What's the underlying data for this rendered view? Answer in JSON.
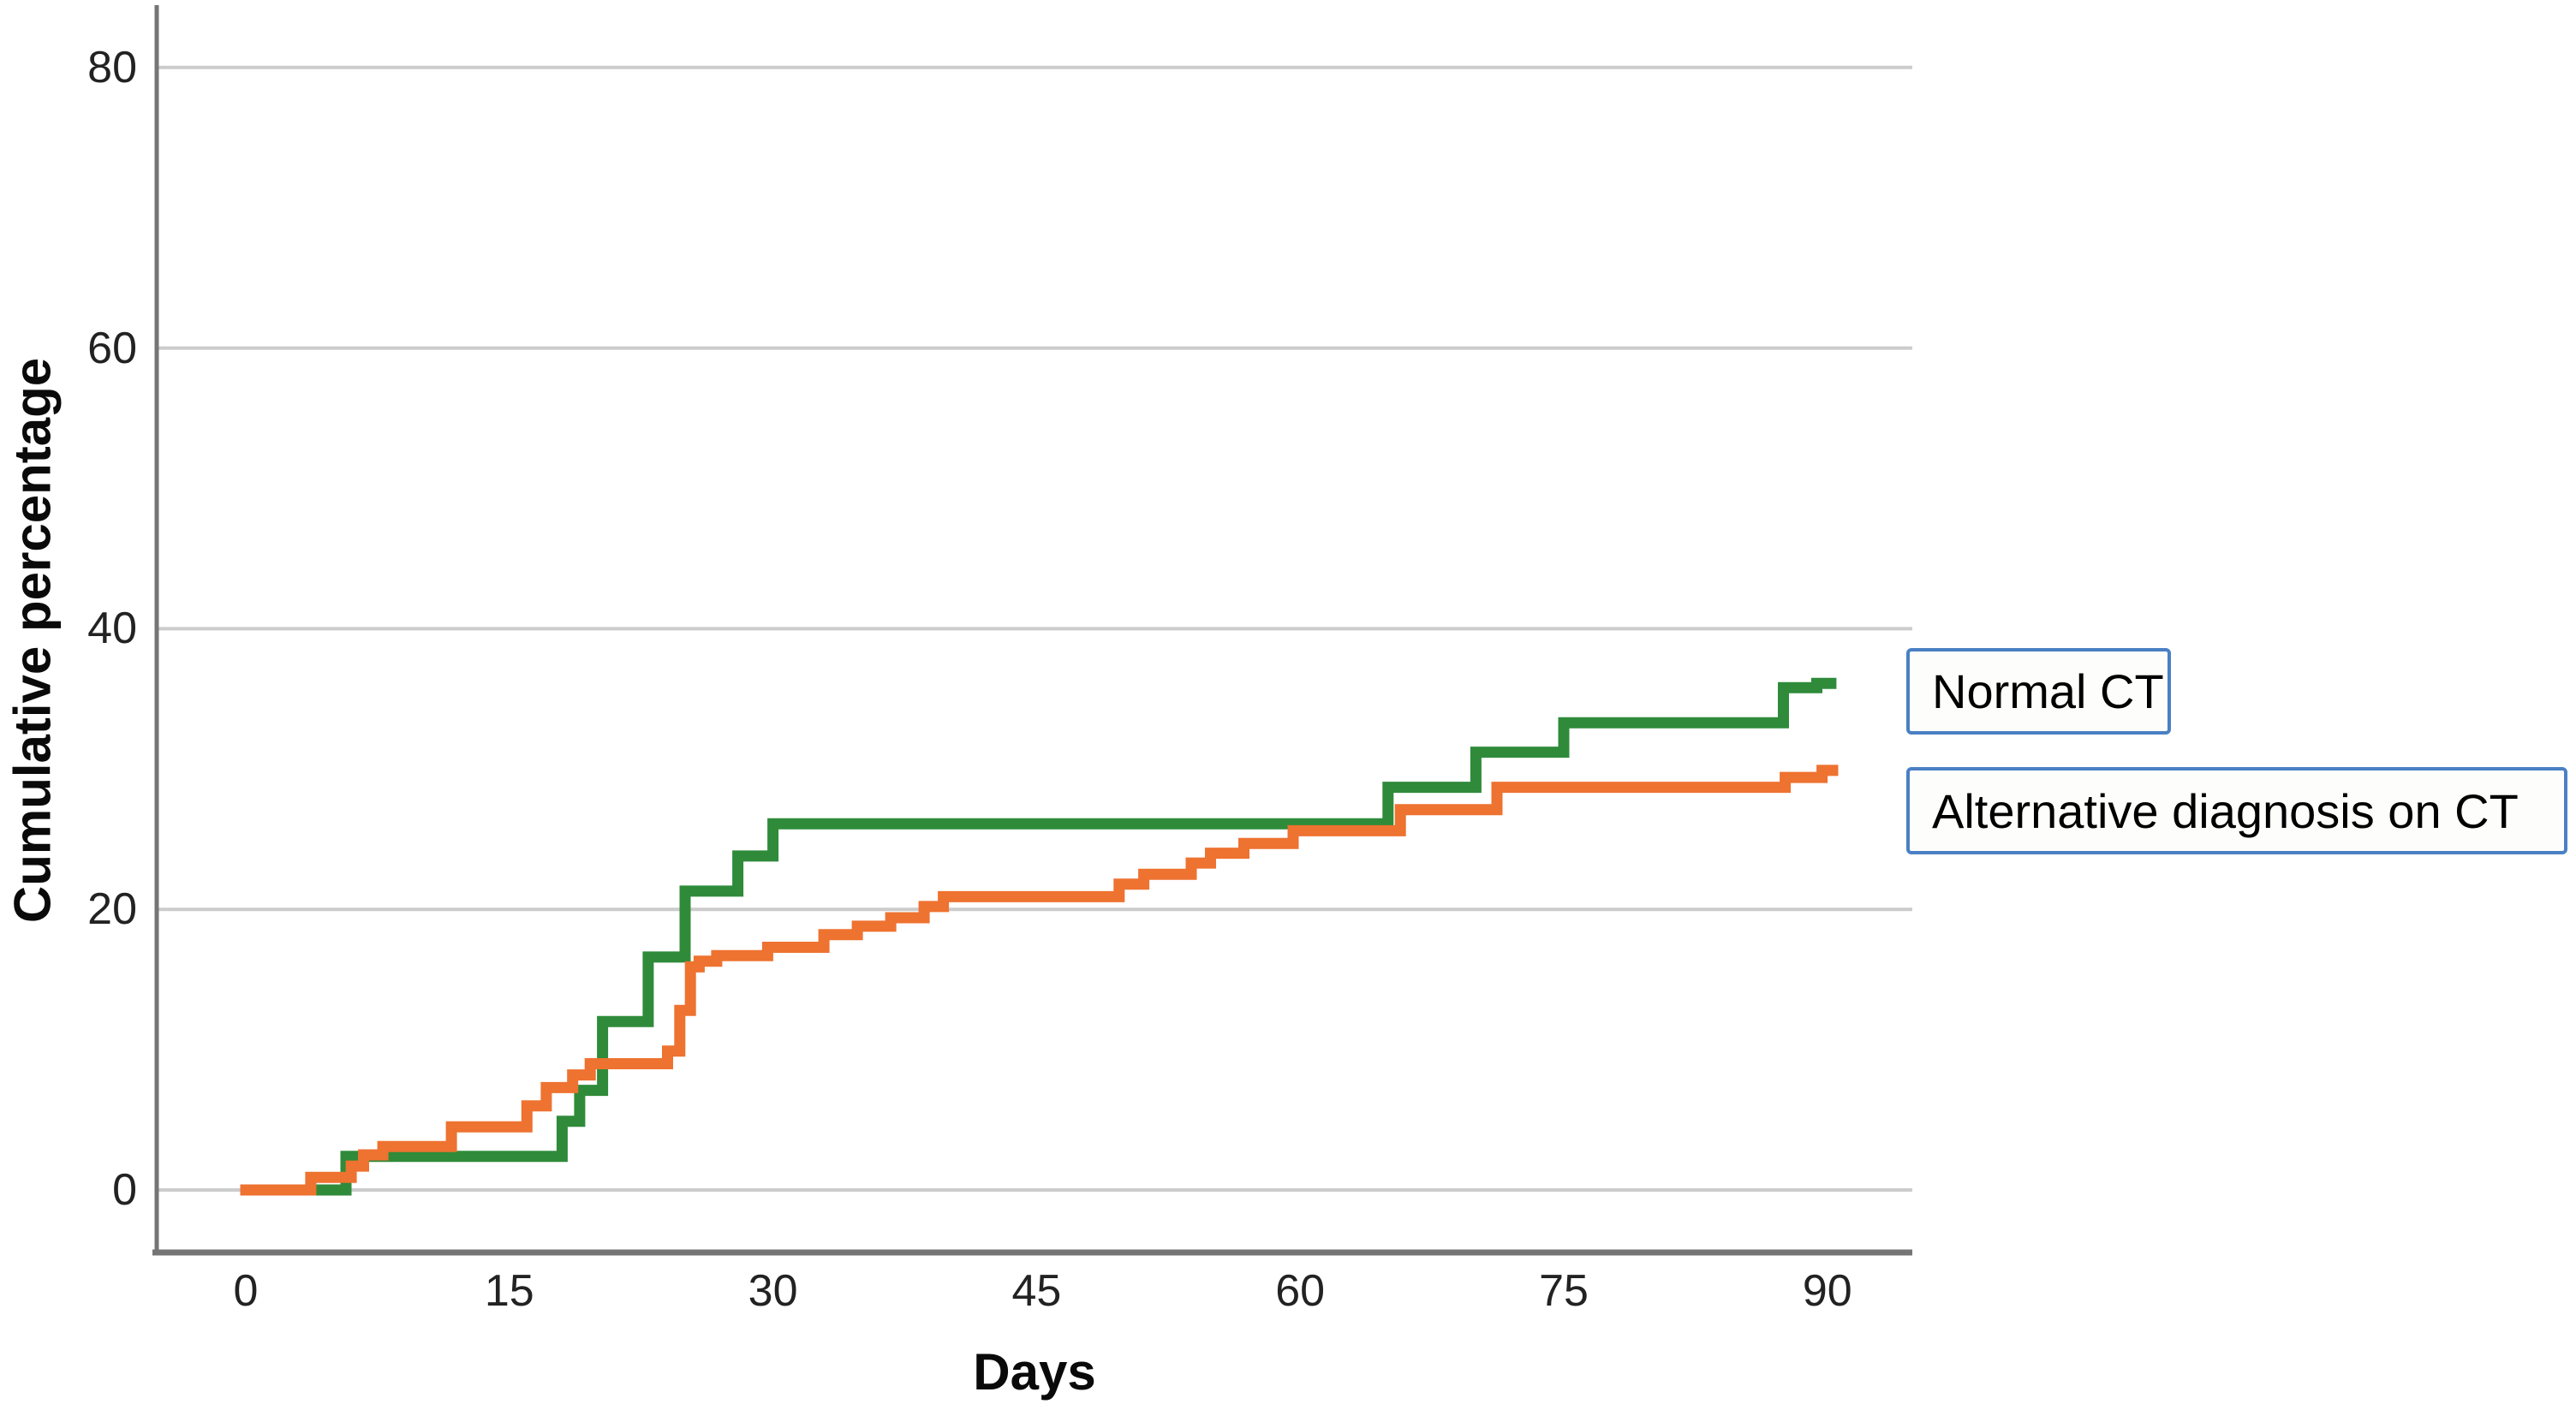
{
  "figure": {
    "background": "#ffffff"
  },
  "axes": {
    "x_title": "Days",
    "y_title": "Cumulative percentage"
  },
  "legend": {
    "border_color": "#4a80c4",
    "items": [
      {
        "label": "Normal CT"
      },
      {
        "label": "Alternative diagnosis on CT"
      }
    ]
  },
  "colors": {
    "gridline": "#cccccc",
    "axis_line": "#757575",
    "tick_text": "#222222",
    "normal_ct": "#2f8b3a",
    "alt_ct": "#ee7230"
  },
  "chart_data": {
    "type": "line",
    "subtype": "step",
    "title": "",
    "xlabel": "Days",
    "ylabel": "Cumulative percentage",
    "x_ticks": [
      0,
      15,
      30,
      45,
      60,
      75,
      90
    ],
    "y_ticks": [
      0,
      20,
      40,
      60,
      80
    ],
    "xlim": [
      -5,
      95
    ],
    "ylim": [
      -4.5,
      85
    ],
    "grid": "horizontal-only",
    "legend_position": "right-outside",
    "series": [
      {
        "name": "Normal CT",
        "color": "#2f8b3a",
        "steps": [
          [
            0,
            0
          ],
          [
            5.7,
            2.4
          ],
          [
            18,
            4.9
          ],
          [
            19,
            7.1
          ],
          [
            20.3,
            12.0
          ],
          [
            22.9,
            16.6
          ],
          [
            25,
            21.3
          ],
          [
            28,
            23.8
          ],
          [
            30,
            26.1
          ],
          [
            65,
            28.7
          ],
          [
            70,
            31.2
          ],
          [
            75,
            33.3
          ],
          [
            87.5,
            35.8
          ],
          [
            89.4,
            36.1
          ],
          [
            90.2,
            36.1
          ]
        ]
      },
      {
        "name": "Alternative diagnosis on CT",
        "color": "#ee7230",
        "steps": [
          [
            0,
            0
          ],
          [
            3.7,
            0.9
          ],
          [
            6,
            1.7
          ],
          [
            6.7,
            2.5
          ],
          [
            7.8,
            3.1
          ],
          [
            11.7,
            4.5
          ],
          [
            16,
            6.0
          ],
          [
            17.1,
            7.3
          ],
          [
            18.6,
            8.2
          ],
          [
            19.6,
            9.0
          ],
          [
            24,
            9.9
          ],
          [
            24.7,
            12.8
          ],
          [
            25.3,
            15.9
          ],
          [
            25.8,
            16.3
          ],
          [
            26.8,
            16.7
          ],
          [
            29.7,
            17.3
          ],
          [
            32.9,
            18.2
          ],
          [
            34.8,
            18.8
          ],
          [
            36.7,
            19.4
          ],
          [
            38.6,
            20.2
          ],
          [
            39.7,
            20.9
          ],
          [
            49.7,
            21.8
          ],
          [
            51.1,
            22.5
          ],
          [
            53.8,
            23.3
          ],
          [
            54.9,
            24.0
          ],
          [
            56.8,
            24.7
          ],
          [
            59.6,
            25.6
          ],
          [
            65.7,
            27.1
          ],
          [
            71.2,
            28.7
          ],
          [
            87.6,
            29.4
          ],
          [
            89.7,
            29.9
          ],
          [
            90.3,
            29.9
          ]
        ]
      }
    ]
  }
}
